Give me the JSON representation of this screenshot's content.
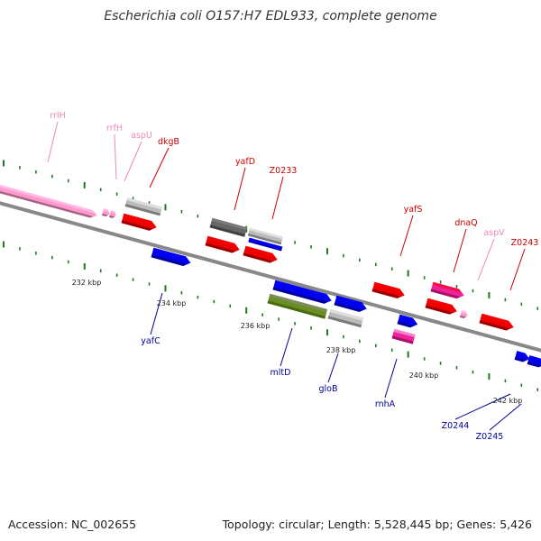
{
  "title": "Escherichia coli O157:H7 EDL933, complete genome",
  "footer": {
    "accession": "Accession: NC_002655",
    "stats": "Topology: circular; Length: 5,528,445 bp; Genes: 5,426"
  },
  "colors": {
    "cds_forward": "#ee0000",
    "cds_reverse": "#0000ee",
    "rna": "#ff99cc",
    "pseudo": "#bbbbbb",
    "other": "#666666",
    "label_forward": "#cc0000",
    "label_reverse": "#000099",
    "label_rna": "#ee88bb",
    "tick": "#227722",
    "backbone": "#888888"
  },
  "kbp_labels": [
    {
      "text": "232 kbp"
    },
    {
      "text": "234 kbp"
    },
    {
      "text": "236 kbp"
    },
    {
      "text": "238 kbp"
    },
    {
      "text": "240 kbp"
    },
    {
      "text": "242 kbp"
    }
  ],
  "gene_labels": [
    {
      "text": "rrlH",
      "color": "rna"
    },
    {
      "text": "rrfH",
      "color": "rna"
    },
    {
      "text": "aspU",
      "color": "rna"
    },
    {
      "text": "dkgB",
      "color": "forward"
    },
    {
      "text": "yafD",
      "color": "forward"
    },
    {
      "text": "Z0233",
      "color": "forward"
    },
    {
      "text": "yafS",
      "color": "forward"
    },
    {
      "text": "dnaQ",
      "color": "forward"
    },
    {
      "text": "aspV",
      "color": "rna"
    },
    {
      "text": "Z0243",
      "color": "forward"
    },
    {
      "text": "yafC",
      "color": "reverse"
    },
    {
      "text": "mltD",
      "color": "reverse"
    },
    {
      "text": "gloB",
      "color": "reverse"
    },
    {
      "text": "rnhA",
      "color": "reverse"
    },
    {
      "text": "Z0244",
      "color": "reverse"
    },
    {
      "text": "Z0245",
      "color": "reverse"
    }
  ]
}
